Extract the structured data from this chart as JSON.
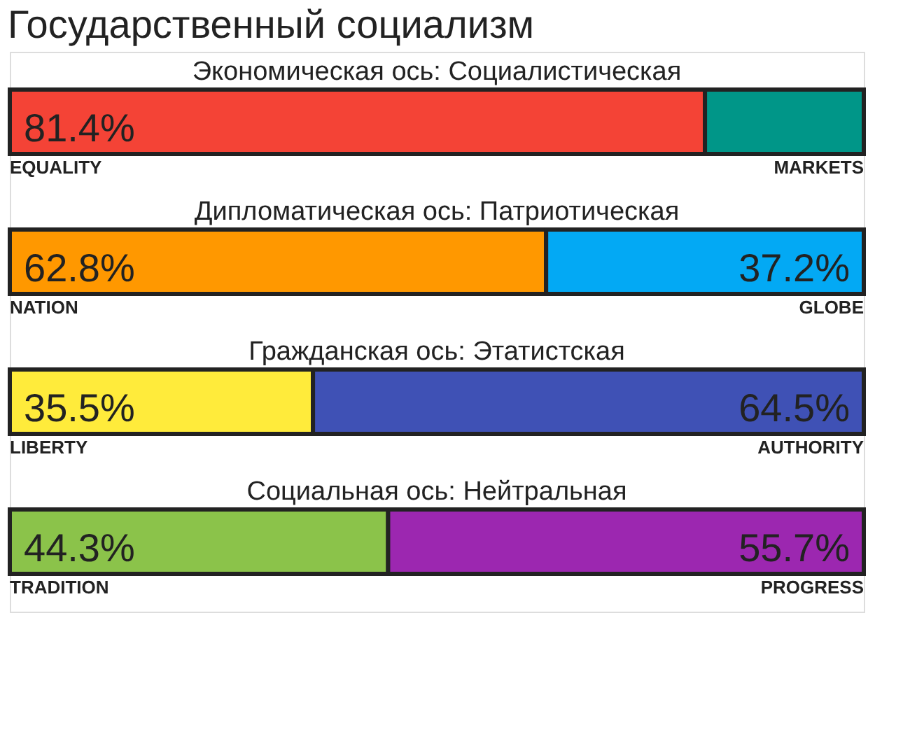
{
  "chart_data": {
    "type": "bar",
    "orientation": "horizontal",
    "stacked": true,
    "title": "Государственный социализм",
    "categories": [
      "Экономическая ось: Социалистическая",
      "Дипломатическая ось: Патриотическая",
      "Гражданская ось: Этатистская",
      "Социальная ось: Нейтральная"
    ],
    "series": [
      {
        "values": [
          81.4,
          62.8,
          35.5,
          44.3
        ],
        "colors": [
          "#f44336",
          "#ff9800",
          "#ffeb3b",
          "#8bc34a"
        ],
        "value_labels": [
          "81.4%",
          "62.8%",
          "35.5%",
          "44.3%"
        ]
      },
      {
        "values": [
          18.6,
          37.2,
          64.5,
          55.7
        ],
        "colors": [
          "#009688",
          "#03a9f4",
          "#3f51b5",
          "#9c27b0"
        ],
        "value_labels": [
          null,
          "37.2%",
          "64.5%",
          "55.7%"
        ]
      }
    ],
    "xlim": [
      0,
      100
    ],
    "annotations": [
      "EQUALITY",
      "MARKETS",
      "NATION",
      "GLOBE",
      "LIBERTY",
      "AUTHORITY",
      "TRADITION",
      "PROGRESS"
    ]
  }
}
